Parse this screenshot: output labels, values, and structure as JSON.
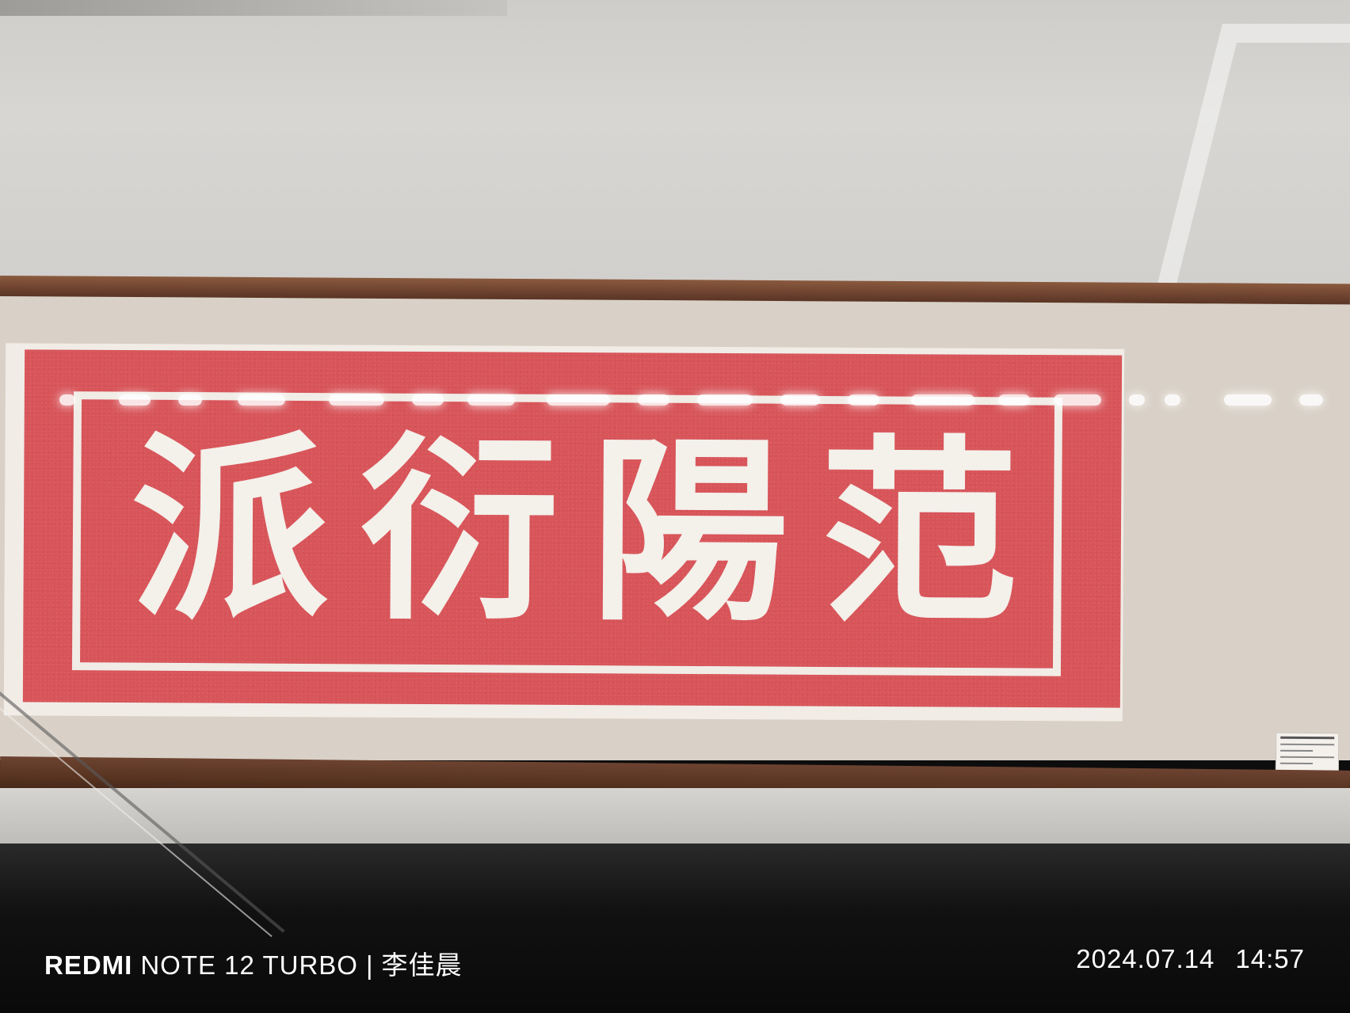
{
  "plaque": {
    "characters": [
      "派",
      "衍",
      "陽",
      "范"
    ],
    "colors": {
      "ground": "#d8555a",
      "text": "#f4f0ea"
    }
  },
  "watermark": {
    "brand": "REDMI",
    "model": "NOTE 12 TURBO",
    "separator": "|",
    "photographer": "李佳晨",
    "date": "2024.07.14",
    "time": "14:57"
  }
}
